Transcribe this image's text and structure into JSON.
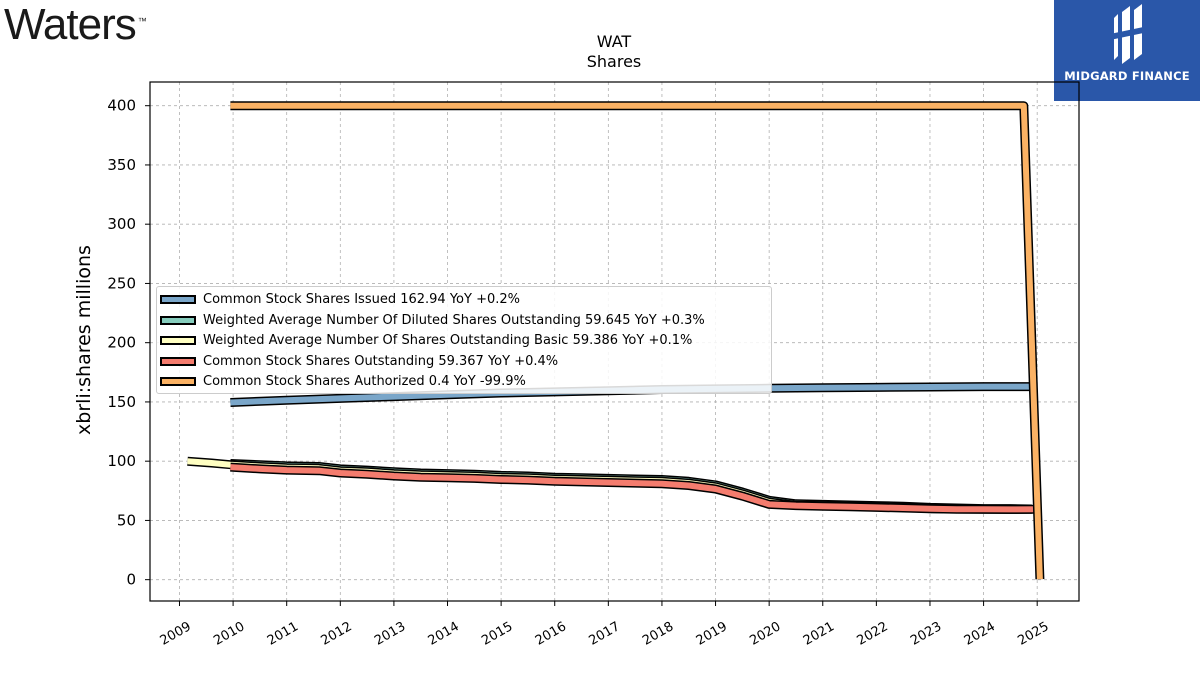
{
  "logos": {
    "left_text": "Waters",
    "left_tm": "™",
    "right_text": "MIDGARD FINANCE",
    "right_color": "#2a57a9"
  },
  "chart_data": {
    "type": "line",
    "title": "WAT",
    "subtitle": "Shares",
    "ylabel": "xbrli:shares  millions",
    "xlabel": "",
    "ylim": [
      -18,
      420
    ],
    "xlim": [
      2008.45,
      2025.78
    ],
    "yticks": [
      0,
      50,
      100,
      150,
      200,
      250,
      300,
      350,
      400
    ],
    "xticks": [
      "2009",
      "2010",
      "2011",
      "2012",
      "2013",
      "2014",
      "2015",
      "2016",
      "2017",
      "2018",
      "2019",
      "2020",
      "2021",
      "2022",
      "2023",
      "2024",
      "2025"
    ],
    "grid": true,
    "legend_position": "center-left",
    "series": [
      {
        "name": "Common Stock Shares Issued  162.94 YoY +0.2%",
        "color": "#7aa6c9",
        "x": [
          2009.95,
          2011,
          2012,
          2013,
          2014,
          2015,
          2016,
          2017,
          2018,
          2019,
          2020,
          2021,
          2022,
          2023,
          2024,
          2024.9
        ],
        "y": [
          149.5,
          151.5,
          153,
          154.5,
          156,
          157.5,
          158.5,
          159.5,
          160.5,
          161,
          161.5,
          162,
          162.3,
          162.6,
          162.9,
          162.94
        ]
      },
      {
        "name": "Weighted Average Number Of Diluted Shares Outstanding  59.645 YoY +0.3%",
        "color": "#86cdbd",
        "x": [
          2009.95,
          2010.5,
          2011,
          2011.6,
          2012,
          2012.5,
          2013,
          2013.5,
          2014,
          2014.5,
          2015,
          2015.5,
          2016,
          2016.5,
          2017,
          2017.5,
          2018,
          2018.5,
          2019,
          2019.5,
          2020,
          2020.5,
          2021,
          2021.5,
          2022,
          2022.5,
          2023,
          2023.5,
          2024,
          2024.5,
          2024.9
        ],
        "y": [
          98,
          97,
          96,
          95.5,
          93.5,
          92.5,
          91,
          90,
          89.5,
          89,
          88,
          87.5,
          86.5,
          86,
          85.5,
          85,
          84.5,
          83,
          80,
          74,
          67,
          64,
          63.5,
          63,
          62.5,
          62,
          61,
          60.5,
          60,
          60,
          59.645
        ]
      },
      {
        "name": "Weighted Average Number Of Shares Outstanding Basic  59.386 YoY +0.1%",
        "color": "#ffffc2",
        "x": [
          2009.15,
          2009.6,
          2009.95,
          2010.5,
          2011,
          2011.6,
          2012,
          2012.5,
          2013,
          2013.5,
          2014,
          2014.5,
          2015,
          2015.5,
          2016,
          2016.5,
          2017,
          2017.5,
          2018,
          2018.5,
          2019,
          2019.5,
          2020,
          2020.5,
          2021,
          2021.5,
          2022,
          2022.5,
          2023,
          2023.5,
          2024,
          2024.5,
          2024.9
        ],
        "y": [
          100,
          98.5,
          97,
          95.5,
          94.5,
          94,
          92,
          91,
          89.5,
          88.5,
          88,
          87.5,
          86.5,
          86,
          85,
          84.5,
          84,
          83.5,
          83,
          81.5,
          78.5,
          72.5,
          65.5,
          62.8,
          62.5,
          62,
          61.5,
          61,
          60,
          59.6,
          59.4,
          59.3,
          59.386
        ]
      },
      {
        "name": "Common Stock Shares Outstanding  59.367 YoY +0.4%",
        "color": "#f47c6e",
        "x": [
          2009.95,
          2010.5,
          2011,
          2011.6,
          2012,
          2012.5,
          2013,
          2013.5,
          2014,
          2014.5,
          2015,
          2015.5,
          2016,
          2016.5,
          2017,
          2017.5,
          2018,
          2018.5,
          2019,
          2019.5,
          2020,
          2020.5,
          2021,
          2021.5,
          2022,
          2022.5,
          2023,
          2023.5,
          2024,
          2024.5,
          2025.05
        ],
        "y": [
          95,
          93.5,
          92.5,
          92,
          90,
          89,
          87.5,
          86.5,
          86,
          85.5,
          84.5,
          84,
          83,
          82.5,
          82,
          81.5,
          81,
          79.5,
          76.5,
          70.5,
          63.5,
          62.5,
          62,
          61.5,
          61,
          60.5,
          59.8,
          59.5,
          59.4,
          59.3,
          59.367
        ]
      },
      {
        "name": "Common Stock Shares Authorized  0.4 YoY -99.9%",
        "color": "#fbb264",
        "x": [
          2009.95,
          2024.75,
          2025.05
        ],
        "y": [
          400,
          400,
          0.4
        ]
      }
    ]
  }
}
